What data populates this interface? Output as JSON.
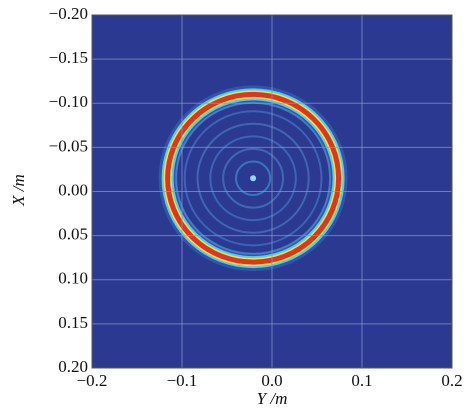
{
  "chart_data": {
    "type": "heatmap",
    "xlabel": "Y /m",
    "ylabel": "X /m",
    "xlim": [
      -0.2,
      0.2
    ],
    "xticks": [
      {
        "value": -0.2,
        "label": "−0.2"
      },
      {
        "value": -0.1,
        "label": "−0.1"
      },
      {
        "value": 0,
        "label": "0.0"
      },
      {
        "value": 0.1,
        "label": "0.1"
      },
      {
        "value": 0.2,
        "label": "0.2"
      }
    ],
    "ylim": [
      0.2,
      -0.2
    ],
    "yticks": [
      {
        "value": -0.2,
        "label": "−0.20"
      },
      {
        "value": -0.15,
        "label": "−0.15"
      },
      {
        "value": -0.1,
        "label": "−0.10"
      },
      {
        "value": -0.05,
        "label": "−0.05"
      },
      {
        "value": 0,
        "label": "0.00"
      },
      {
        "value": 0.05,
        "label": "0.05"
      },
      {
        "value": 0.1,
        "label": "0.10"
      },
      {
        "value": 0.15,
        "label": "0.15"
      },
      {
        "value": 0.2,
        "label": "0.20"
      }
    ],
    "grid": true,
    "background_color": "#2b3990",
    "ring": {
      "x": -0.021,
      "y": -0.015,
      "r": 0.095
    }
  }
}
